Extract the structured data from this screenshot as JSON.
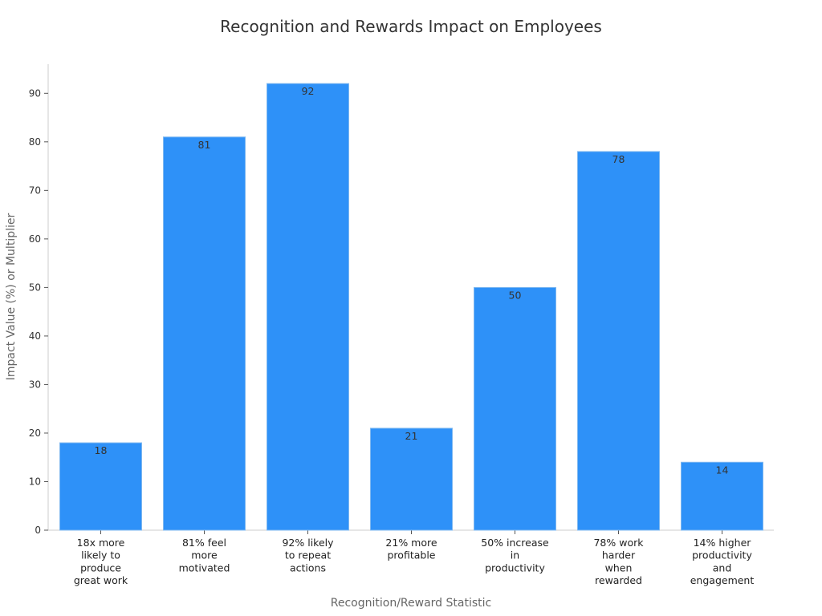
{
  "chart_data": {
    "type": "bar",
    "title": "Recognition and Rewards Impact on Employees",
    "xlabel": "Recognition/Reward Statistic",
    "ylabel": "Impact Value (%) or Multiplier",
    "categories": [
      [
        "18x more",
        "likely to",
        "produce",
        "great work"
      ],
      [
        "81% feel",
        "more",
        "motivated"
      ],
      [
        "92% likely",
        "to repeat",
        "actions"
      ],
      [
        "21% more",
        "profitable"
      ],
      [
        "50% increase",
        "in",
        "productivity"
      ],
      [
        "78% work",
        "harder",
        "when",
        "rewarded"
      ],
      [
        "14% higher",
        "productivity",
        "and",
        "engagement"
      ]
    ],
    "values": [
      18,
      81,
      92,
      21,
      50,
      78,
      14
    ],
    "ylim": [
      0,
      96
    ],
    "yticks": [
      0,
      10,
      20,
      30,
      40,
      50,
      60,
      70,
      80,
      90
    ],
    "grid": false,
    "bar_color": "#2e91f8",
    "bar_edge_color": "#7fb8f0"
  }
}
